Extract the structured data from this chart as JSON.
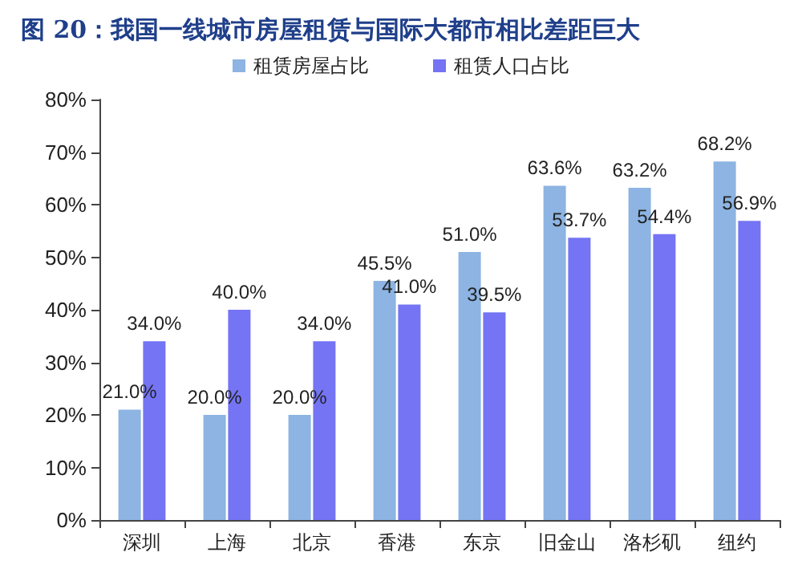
{
  "chart_data": {
    "type": "bar",
    "title": "图 20：我国一线城市房屋租赁与国际大都市相比差距巨大",
    "categories": [
      "深圳",
      "上海",
      "北京",
      "香港",
      "东京",
      "旧金山",
      "洛杉矶",
      "纽约"
    ],
    "series": [
      {
        "name": "租赁房屋占比",
        "color": "#8db4e2",
        "values": [
          21.0,
          20.0,
          20.0,
          45.5,
          51.0,
          63.6,
          63.2,
          68.2
        ],
        "value_labels": [
          "21.0%",
          "20.0%",
          "20.0%",
          "45.5%",
          "51.0%",
          "63.6%",
          "63.2%",
          "68.2%"
        ]
      },
      {
        "name": "租赁人口占比",
        "color": "#7474f4",
        "values": [
          34.0,
          40.0,
          34.0,
          41.0,
          39.5,
          53.7,
          54.4,
          56.9
        ],
        "value_labels": [
          "34.0%",
          "40.0%",
          "34.0%",
          "41.0%",
          "39.5%",
          "53.7%",
          "54.4%",
          "56.9%"
        ]
      }
    ],
    "ylim": [
      0,
      80
    ],
    "yticks": [
      {
        "value": 0,
        "label": "0%"
      },
      {
        "value": 10,
        "label": "10%"
      },
      {
        "value": 20,
        "label": "20%"
      },
      {
        "value": 30,
        "label": "30%"
      },
      {
        "value": 40,
        "label": "40%"
      },
      {
        "value": 50,
        "label": "50%"
      },
      {
        "value": 60,
        "label": "60%"
      },
      {
        "value": 70,
        "label": "70%"
      },
      {
        "value": 80,
        "label": "80%"
      }
    ],
    "grid": false,
    "legend": "top"
  }
}
